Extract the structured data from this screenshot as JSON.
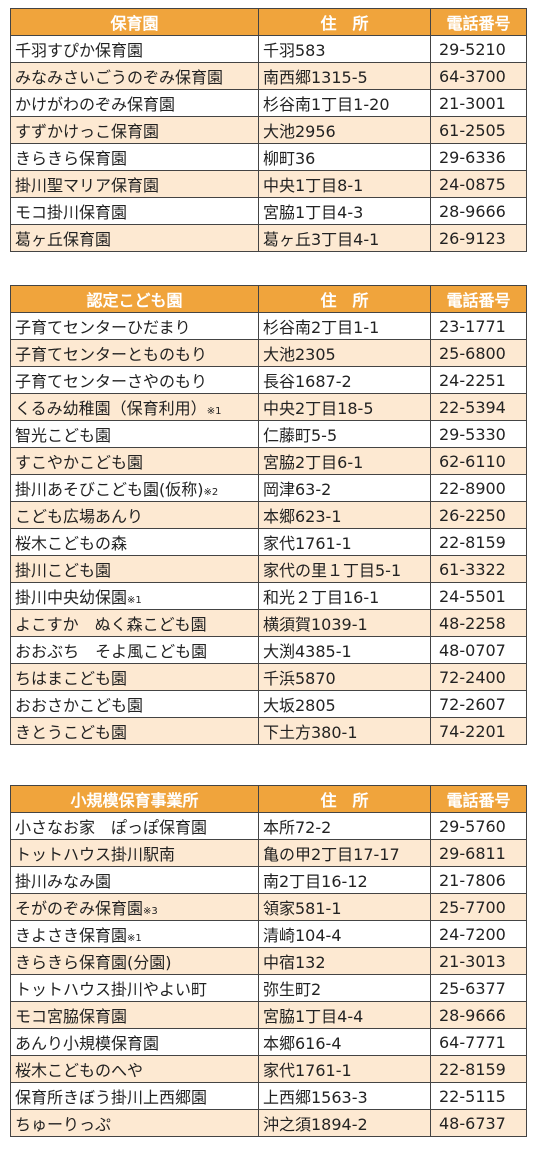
{
  "sections": [
    {
      "header": {
        "name": "保育園",
        "address": "住　所",
        "phone": "電話番号"
      },
      "rows": [
        {
          "name": "千羽すぴか保育園",
          "address": "千羽583",
          "phone": "29-5210"
        },
        {
          "name": "みなみさいごうのぞみ保育園",
          "address": "南西郷1315-5",
          "phone": "64-3700"
        },
        {
          "name": "かけがわのぞみ保育園",
          "address": "杉谷南1丁目1-20",
          "phone": "21-3001"
        },
        {
          "name": "すずかけっこ保育園",
          "address": "大池2956",
          "phone": "61-2505"
        },
        {
          "name": "きらきら保育園",
          "address": "柳町36",
          "phone": "29-6336"
        },
        {
          "name": "掛川聖マリア保育園",
          "address": "中央1丁目8-1",
          "phone": "24-0875"
        },
        {
          "name": "モコ掛川保育園",
          "address": "宮脇1丁目4-3",
          "phone": "28-9666"
        },
        {
          "name": "葛ヶ丘保育園",
          "address": "葛ヶ丘3丁目4-1",
          "phone": "26-9123"
        }
      ]
    },
    {
      "header": {
        "name": "認定こども園",
        "address": "住　所",
        "phone": "電話番号"
      },
      "rows": [
        {
          "name": "子育てセンターひだまり",
          "address": "杉谷南2丁目1-1",
          "phone": "23-1771"
        },
        {
          "name": "子育てセンターとものもり",
          "address": "大池2305",
          "phone": "25-6800"
        },
        {
          "name": "子育てセンターさやのもり",
          "address": "長谷1687-2",
          "phone": "24-2251"
        },
        {
          "name": "くるみ幼稚園（保育利用）",
          "note": "※1",
          "address": "中央2丁目18-5",
          "phone": "22-5394"
        },
        {
          "name": "智光こども園",
          "address": "仁藤町5-5",
          "phone": "29-5330"
        },
        {
          "name": "すこやかこども園",
          "address": "宮脇2丁目6-1",
          "phone": "62-6110"
        },
        {
          "name": "掛川あそびこども園(仮称)",
          "note": "※2",
          "address": "岡津63-2",
          "phone": "22-8900"
        },
        {
          "name": "こども広場あんり",
          "address": "本郷623-1",
          "phone": "26-2250"
        },
        {
          "name": "桜木こどもの森",
          "address": "家代1761-1",
          "phone": "22-8159"
        },
        {
          "name": "掛川こども園",
          "address": "家代の里１丁目5-1",
          "phone": "61-3322"
        },
        {
          "name": "掛川中央幼保園",
          "note": "※1",
          "address": "和光２丁目16-1",
          "phone": "24-5501"
        },
        {
          "name": "よこすか　ぬく森こども園",
          "address": "横須賀1039-1",
          "phone": "48-2258"
        },
        {
          "name": "おおぶち　そよ風こども園",
          "address": "大渕4385-1",
          "phone": "48-0707"
        },
        {
          "name": "ちはまこども園",
          "address": "千浜5870",
          "phone": "72-2400"
        },
        {
          "name": "おおさかこども園",
          "address": "大坂2805",
          "phone": "72-2607"
        },
        {
          "name": "きとうこども園",
          "address": "下土方380-1",
          "phone": "74-2201"
        }
      ]
    },
    {
      "header": {
        "name": "小規模保育事業所",
        "address": "住　所",
        "phone": "電話番号"
      },
      "rows": [
        {
          "name": "小さなお家　ぽっぽ保育園",
          "address": "本所72-2",
          "phone": "29-5760"
        },
        {
          "name": "トットハウス掛川駅南",
          "address": "亀の甲2丁目17-17",
          "phone": "29-6811"
        },
        {
          "name": "掛川みなみ園",
          "address": "南2丁目16-12",
          "phone": "21-7806"
        },
        {
          "name": "そがのぞみ保育園",
          "note": "※3",
          "address": "領家581-1",
          "phone": "25-7700"
        },
        {
          "name": "きよさき保育園",
          "note": "※1",
          "address": "清崎104-4",
          "phone": "24-7200"
        },
        {
          "name": "きらきら保育園(分園)",
          "address": "中宿132",
          "phone": "21-3013"
        },
        {
          "name": "トットハウス掛川やよい町",
          "address": "弥生町2",
          "phone": "25-6377"
        },
        {
          "name": "モコ宮脇保育園",
          "address": "宮脇1丁目4-4",
          "phone": "28-9666"
        },
        {
          "name": "あんり小規模保育園",
          "address": "本郷616-4",
          "phone": "64-7771"
        },
        {
          "name": "桜木こどものへや",
          "address": "家代1761-1",
          "phone": "22-8159"
        },
        {
          "name": "保育所きぼう掛川上西郷園",
          "address": "上西郷1563-3",
          "phone": "22-5115"
        },
        {
          "name": "ちゅーりっぷ",
          "address": "沖之須1894-2",
          "phone": "48-6737"
        }
      ]
    }
  ]
}
